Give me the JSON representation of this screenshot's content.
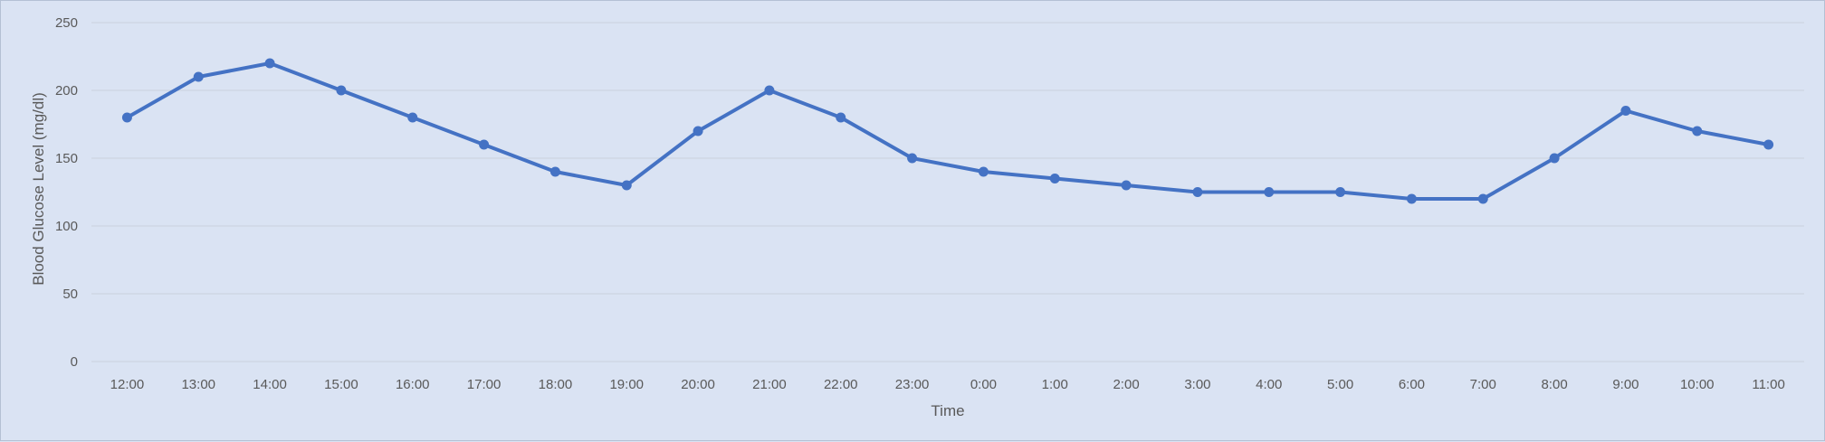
{
  "chart_data": {
    "type": "line",
    "title": "",
    "xlabel": "Time",
    "ylabel": "Blood Glucose Level (mg/dl)",
    "categories": [
      "12:00",
      "13:00",
      "14:00",
      "15:00",
      "16:00",
      "17:00",
      "18:00",
      "19:00",
      "20:00",
      "21:00",
      "22:00",
      "23:00",
      "0:00",
      "1:00",
      "2:00",
      "3:00",
      "4:00",
      "5:00",
      "6:00",
      "7:00",
      "8:00",
      "9:00",
      "10:00",
      "11:00"
    ],
    "series": [
      {
        "values": [
          180,
          210,
          220,
          200,
          180,
          160,
          140,
          130,
          170,
          200,
          180,
          150,
          140,
          135,
          130,
          125,
          125,
          125,
          120,
          120,
          150,
          185,
          170,
          160
        ]
      }
    ],
    "ylim": [
      0,
      250
    ],
    "yticks": [
      0,
      50,
      100,
      150,
      200,
      250
    ],
    "ytick_labels": [
      "0",
      "50",
      "100",
      "150",
      "200",
      "250"
    ],
    "grid": true,
    "legend": "none",
    "colors": {
      "line": "#4472c4",
      "grid": "#c9d0dc",
      "text": "#595959",
      "background": "#dae3f3"
    }
  }
}
